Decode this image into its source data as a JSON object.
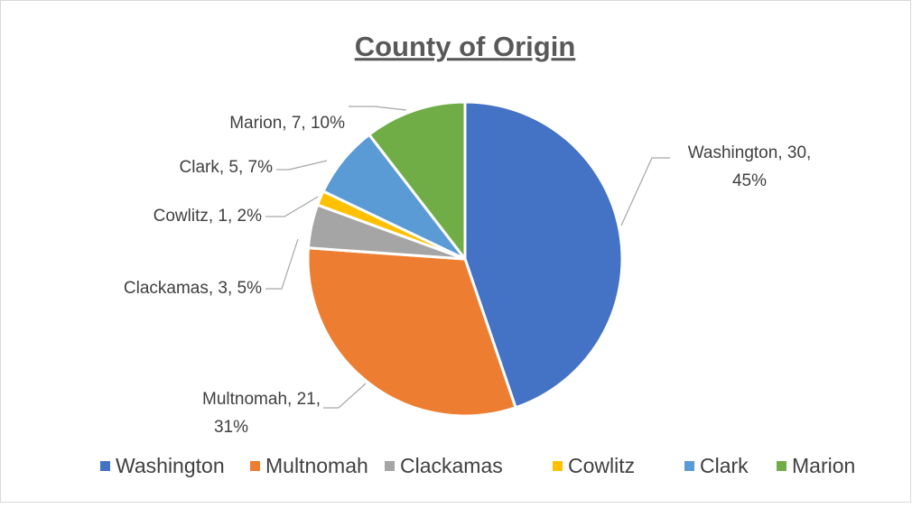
{
  "chart_data": {
    "type": "pie",
    "title": "County of Origin",
    "categories": [
      "Washington",
      "Multnomah",
      "Clackamas",
      "Cowlitz",
      "Clark",
      "Marion"
    ],
    "values": [
      30,
      21,
      3,
      1,
      5,
      7
    ],
    "value_labels": [
      "Washington, 30, 45%",
      "Multnomah, 21, 31%",
      "Clackamas, 3, 5%",
      "Cowlitz, 1, 2%",
      "Clark, 5, 7%",
      "Marion, 7, 10%"
    ],
    "colors": [
      "#4472c4",
      "#ed7d31",
      "#a5a5a5",
      "#ffc000",
      "#5b9bd5",
      "#70ad47"
    ],
    "legend": "bottom"
  }
}
